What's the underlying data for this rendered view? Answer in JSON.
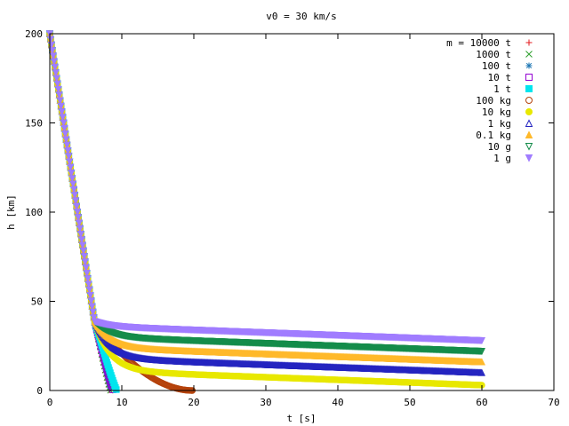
{
  "chart_data": {
    "type": "scatter",
    "title": "v0 = 30 km/s",
    "xlabel": "t [s]",
    "ylabel": "h [km]",
    "xlim": [
      0,
      70
    ],
    "ylim": [
      0,
      200
    ],
    "xticks": [
      "0",
      "10",
      "20",
      "30",
      "40",
      "50",
      "60",
      "70"
    ],
    "yticks": [
      "0",
      "50",
      "100",
      "150",
      "200"
    ],
    "grid": false,
    "legend_position": "top-right",
    "series": [
      {
        "name": "m = 10000 t",
        "marker": "plus",
        "color": "#e41a1c",
        "t_end": 8.3,
        "h_end": 0
      },
      {
        "name": "1000 t",
        "marker": "cross",
        "color": "#2ca02c",
        "t_end": 8.4,
        "h_end": 0
      },
      {
        "name": "100 t",
        "marker": "star",
        "color": "#1f77b4",
        "t_end": 8.5,
        "h_end": 0
      },
      {
        "name": "10 t",
        "marker": "open-square",
        "color": "#9400d3",
        "t_end": 8.8,
        "h_end": 0
      },
      {
        "name": "1 t",
        "marker": "filled-square",
        "color": "#00e5ee",
        "t_end": 9.3,
        "h_end": 0
      },
      {
        "name": "100 kg",
        "marker": "open-circle",
        "color": "#b5420b",
        "t_end": 19.8,
        "h_end": 0
      },
      {
        "name": "10 kg",
        "marker": "filled-circle",
        "color": "#e8e800",
        "t_end": 60,
        "h_end": 3
      },
      {
        "name": "1 kg",
        "marker": "open-triangle",
        "color": "#2424c0",
        "t_end": 60,
        "h_end": 10
      },
      {
        "name": "0.1 kg",
        "marker": "filled-triangle",
        "color": "#ffb92a",
        "t_end": 60,
        "h_end": 16
      },
      {
        "name": "10 g",
        "marker": "open-inverted-triangle",
        "color": "#148c4a",
        "t_end": 60,
        "h_end": 22
      },
      {
        "name": "1 g",
        "marker": "filled-inverted-triangle",
        "color": "#a07cff",
        "t_end": 60,
        "h_end": 28
      }
    ]
  }
}
